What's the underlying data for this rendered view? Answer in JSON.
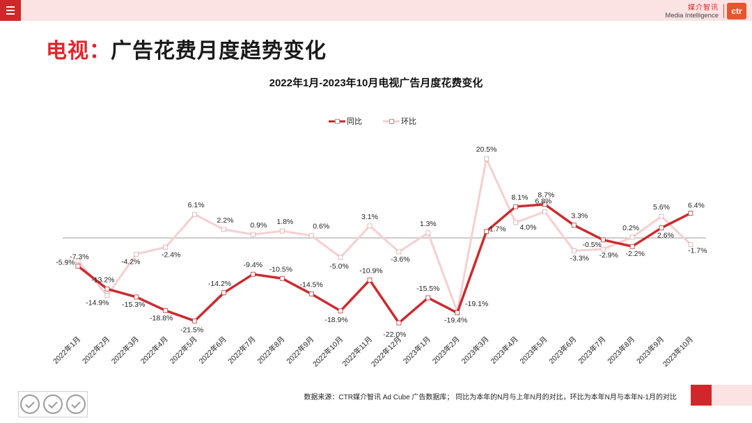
{
  "header": {
    "brand_cn": "媒介智讯",
    "brand_en": "Media Intelligence",
    "logo_text": "ctr",
    "page_title_red": "电视：",
    "page_title_rest": "广告花费月度趋势变化"
  },
  "footer": {
    "source_note": "数据来源：CTR媒介智讯 Ad Cube 广告数据库； 同比为本年的N月与上年N月的对比，环比为本年N月与本年N-1月的对比"
  },
  "colors": {
    "yoy": "#cc2a2e",
    "mom": "#f6cfd1",
    "accent": "#d0282a"
  },
  "chart_data": {
    "type": "line",
    "title": "2022年1月-2023年10月电视广告月度花费变化",
    "xlabel": "",
    "ylabel": "",
    "ylim": [
      -28,
      28
    ],
    "unit": "%",
    "legend_position": "top-center",
    "categories": [
      "2022年1月",
      "2022年2月",
      "2022年3月",
      "2022年4月",
      "2022年5月",
      "2022年6月",
      "2022年7月",
      "2022年8月",
      "2022年9月",
      "2022年10月",
      "2022年11月",
      "2022年12月",
      "2023年1月",
      "2023年2月",
      "2023年3月",
      "2023年4月",
      "2023年5月",
      "2023年6月",
      "2023年7月",
      "2023年8月",
      "2023年9月",
      "2023年10月"
    ],
    "series": [
      {
        "name": "同比",
        "values": [
          -7.3,
          -13.2,
          -15.3,
          -18.8,
          -21.5,
          -14.2,
          -9.4,
          -10.5,
          -14.5,
          -18.9,
          -10.9,
          -22.0,
          -15.5,
          -19.4,
          1.7,
          8.1,
          8.7,
          3.3,
          -0.5,
          -2.2,
          2.6,
          6.4
        ]
      },
      {
        "name": "环比",
        "values": [
          -5.9,
          -14.9,
          -4.2,
          -2.4,
          6.1,
          2.2,
          0.9,
          1.8,
          0.6,
          -5.0,
          3.1,
          -3.6,
          1.3,
          -19.1,
          20.5,
          4.0,
          6.8,
          -3.3,
          -2.9,
          0.2,
          5.6,
          -1.7
        ]
      }
    ]
  }
}
